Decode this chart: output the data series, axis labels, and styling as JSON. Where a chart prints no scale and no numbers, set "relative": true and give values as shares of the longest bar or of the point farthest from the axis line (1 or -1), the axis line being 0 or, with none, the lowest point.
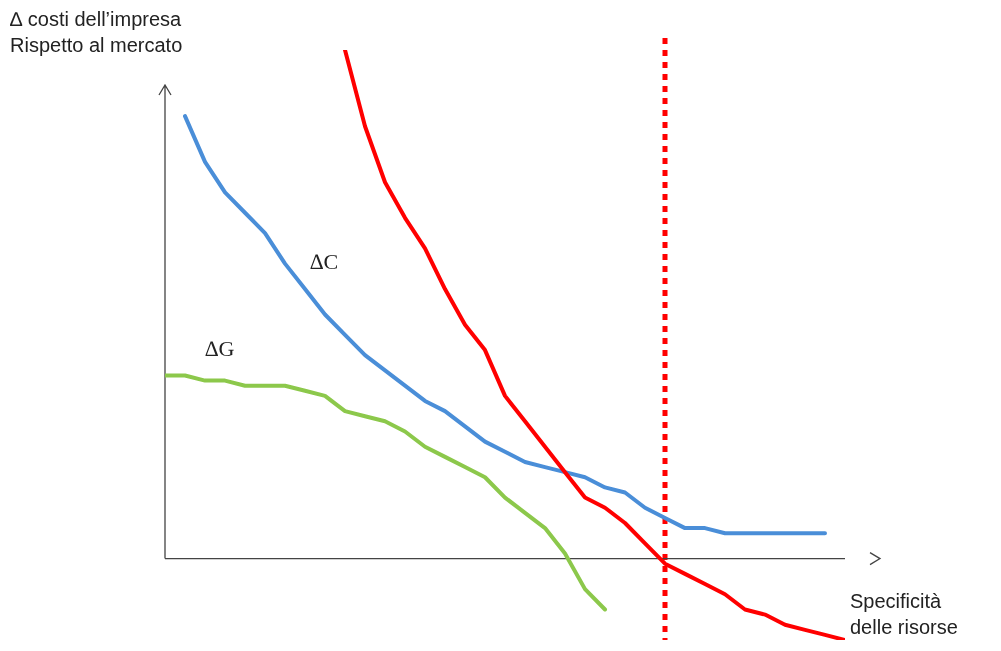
{
  "chart_data": {
    "type": "line",
    "relative": true,
    "marker": "none",
    "line_style": "solid",
    "xlabel": "Specificità\ndelle risorse",
    "ylabel": "∆ costi dell’impresa\nRispetto al mercato",
    "categories": [
      null,
      null,
      null,
      null,
      null,
      null,
      null,
      null,
      null,
      null,
      null,
      null,
      null,
      null,
      null,
      null,
      null,
      null,
      null,
      null,
      null,
      null,
      null,
      null,
      null,
      null,
      null,
      null,
      null,
      null,
      null,
      null,
      null,
      null,
      null
    ],
    "series": [
      {
        "name": "∆C",
        "color": "#4a8ed8",
        "values": [
          null,
          0.87,
          0.78,
          0.72,
          0.68,
          0.64,
          0.58,
          0.53,
          0.48,
          0.44,
          0.4,
          0.37,
          0.34,
          0.31,
          0.29,
          0.26,
          0.23,
          0.21,
          0.19,
          0.18,
          0.17,
          0.16,
          0.14,
          0.13,
          0.1,
          0.08,
          0.06,
          0.06,
          0.05,
          0.05,
          0.05,
          0.05,
          0.05,
          0.05,
          null
        ]
      },
      {
        "color": "#ff0000",
        "values": [
          null,
          null,
          null,
          null,
          null,
          null,
          null,
          null,
          null,
          1,
          0.85,
          0.74,
          0.67,
          0.61,
          0.53,
          0.46,
          0.41,
          0.32,
          0.27,
          0.22,
          0.17,
          0.12,
          0.1,
          0.07,
          0.03,
          -0.01,
          -0.03,
          -0.05,
          -0.07,
          -0.1,
          -0.11,
          -0.13,
          -0.14,
          -0.15,
          -0.16
        ]
      },
      {
        "name": "∆G",
        "color": "#8cc84b",
        "values": [
          0.36,
          0.36,
          0.35,
          0.35,
          0.34,
          0.34,
          0.34,
          0.33,
          0.32,
          0.29,
          0.28,
          0.27,
          0.25,
          0.22,
          0.2,
          0.18,
          0.16,
          0.12,
          0.09,
          0.06,
          0.01,
          -0.06,
          -0.1,
          null,
          null,
          null,
          null,
          null,
          null,
          null,
          null,
          null,
          null,
          null,
          null
        ]
      }
    ],
    "ref_lines": [
      {
        "axis": "y",
        "value": 0,
        "color": "#444444"
      }
    ]
  }
}
